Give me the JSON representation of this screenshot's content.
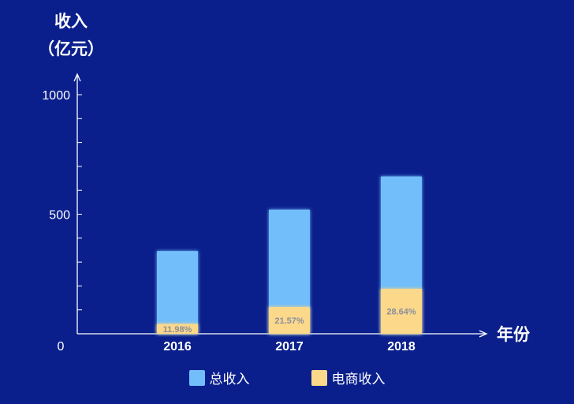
{
  "chart_data": {
    "type": "bar",
    "stacked": true,
    "ylabel_lines": [
      "收入",
      "（亿元）"
    ],
    "xlabel": "年份",
    "categories": [
      "2016",
      "2017",
      "2018"
    ],
    "ylim": [
      0,
      1000
    ],
    "y_ticks": [
      "0",
      "500",
      "1000"
    ],
    "series": [
      {
        "name": "总收入",
        "color": "#71befa",
        "values": [
          346,
          519,
          658
        ]
      },
      {
        "name": "电商收入",
        "color": "#fbd88a",
        "values": [
          41,
          112,
          188
        ]
      }
    ],
    "bar_labels": [
      "11.98%",
      "21.57%",
      "28.64%"
    ],
    "legend_position": "bottom",
    "grid": false
  }
}
